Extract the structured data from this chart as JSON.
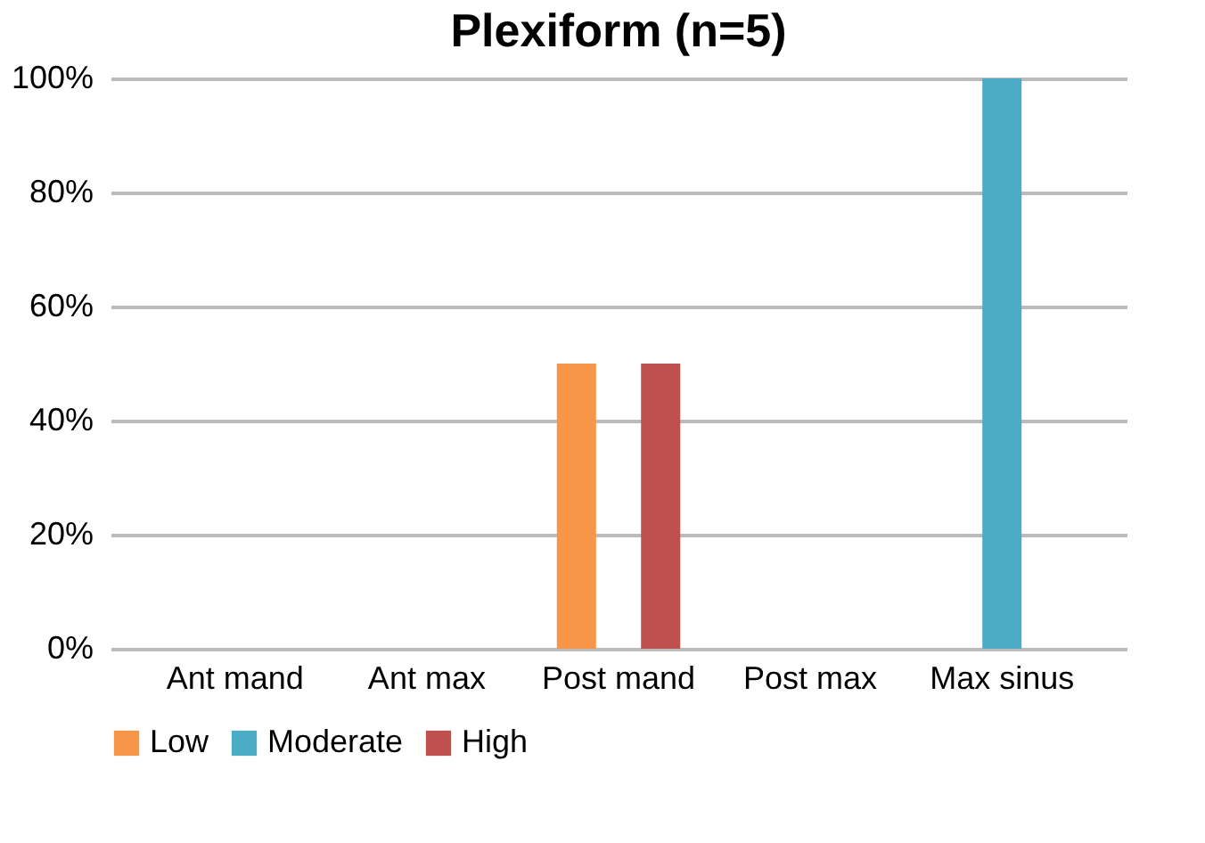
{
  "chart_data": {
    "type": "bar",
    "title": "Plexiform (n=5)",
    "categories": [
      "Ant mand",
      "Ant max",
      "Post mand",
      "Post max",
      "Max sinus"
    ],
    "series": [
      {
        "name": "Low",
        "color": "#f79646",
        "values": [
          0,
          0,
          50,
          0,
          0
        ]
      },
      {
        "name": "Moderate",
        "color": "#4bacc6",
        "values": [
          0,
          0,
          0,
          0,
          100
        ]
      },
      {
        "name": "High",
        "color": "#c0504d",
        "values": [
          0,
          0,
          50,
          0,
          0
        ]
      }
    ],
    "ylim": [
      0,
      100
    ],
    "yticks": [
      {
        "value": 0,
        "label": "0%"
      },
      {
        "value": 20,
        "label": "20%"
      },
      {
        "value": 40,
        "label": "40%"
      },
      {
        "value": 60,
        "label": "60%"
      },
      {
        "value": 80,
        "label": "80%"
      },
      {
        "value": 100,
        "label": "100%"
      }
    ],
    "grid": "y",
    "legend": "bottom"
  }
}
